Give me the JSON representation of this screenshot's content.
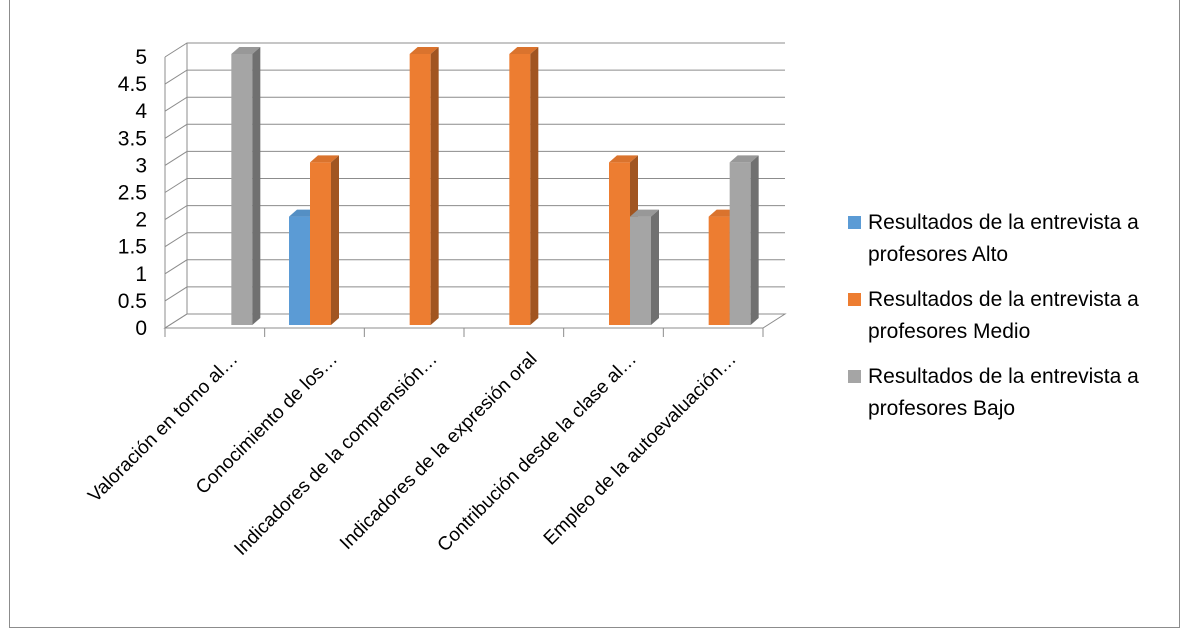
{
  "chart_data": {
    "type": "bar",
    "title": "",
    "xlabel": "",
    "ylabel": "",
    "ylim": [
      0,
      5
    ],
    "y_ticks": [
      "0",
      "0.5",
      "1",
      "1.5",
      "2",
      "2.5",
      "3",
      "3.5",
      "4",
      "4.5",
      "5"
    ],
    "grid": true,
    "legend_position": "right",
    "categories": [
      "Valoración en torno al…",
      "Conocimiento de los…",
      "Indicadores de la comprensión…",
      "Indicadores de la expresión oral",
      "Contribución desde la clase al…",
      "Empleo de la autoevaluación…"
    ],
    "series": [
      {
        "name": "Resultados de la entrevista a profesores Alto",
        "color": "#5b9bd5",
        "values": [
          0,
          2,
          0,
          0,
          0,
          0
        ]
      },
      {
        "name": "Resultados de la entrevista a profesores Medio",
        "color": "#ed7d31",
        "values": [
          0,
          3,
          5,
          5,
          3,
          2
        ]
      },
      {
        "name": "Resultados de la entrevista a profesores Bajo",
        "color": "#a5a5a5",
        "values": [
          5,
          0,
          0,
          0,
          2,
          3
        ]
      }
    ]
  },
  "legend": {
    "items": [
      {
        "line1": "Resultados de la entrevista a",
        "line2": "profesores Alto",
        "color": "#5b9bd5"
      },
      {
        "line1": "Resultados de la entrevista a",
        "line2": "profesores Medio",
        "color": "#ed7d31"
      },
      {
        "line1": "Resultados de la entrevista a",
        "line2": "profesores Bajo",
        "color": "#a5a5a5"
      }
    ]
  }
}
